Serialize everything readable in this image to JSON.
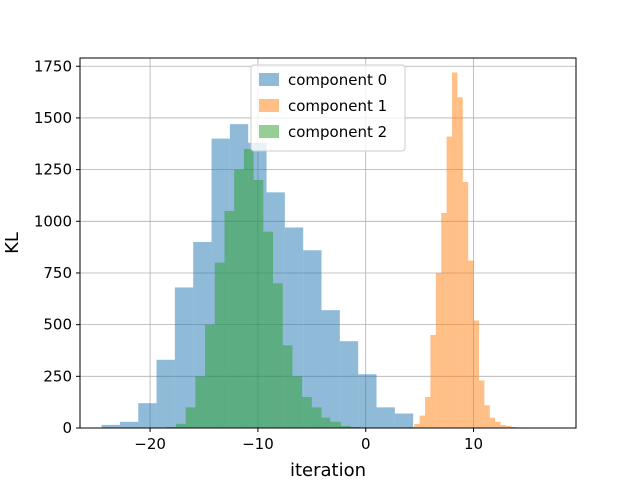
{
  "chart_data": {
    "type": "histogram",
    "xlabel": "iteration",
    "ylabel": "KL",
    "xlim": [
      -26.5,
      19.5
    ],
    "ylim": [
      0,
      1790
    ],
    "xticks": [
      -20,
      -10,
      0,
      10
    ],
    "yticks": [
      0,
      250,
      500,
      750,
      1000,
      1250,
      1500,
      1750
    ],
    "xtick_labels": [
      "−20",
      "−10",
      "0",
      "10"
    ],
    "ytick_labels": [
      "0",
      "250",
      "500",
      "750",
      "1000",
      "1250",
      "1500",
      "1750"
    ],
    "grid": true,
    "legend_position": "top-center",
    "series": [
      {
        "name": "component 0",
        "color": "#1f77b4",
        "alpha": 0.5,
        "bin_edges": [
          -24.5,
          -22.8,
          -21.1,
          -19.4,
          -17.7,
          -16.0,
          -14.3,
          -12.6,
          -10.9,
          -9.2,
          -7.5,
          -5.8,
          -4.1,
          -2.4,
          -0.7,
          1.0,
          2.7,
          4.4
        ],
        "counts": [
          15,
          30,
          120,
          330,
          680,
          900,
          1400,
          1470,
          1380,
          1140,
          970,
          860,
          570,
          420,
          260,
          100,
          70
        ]
      },
      {
        "name": "component 1",
        "color": "#ff7f0e",
        "alpha": 0.5,
        "bin_edges": [
          4.0,
          4.5,
          5.0,
          5.5,
          6.0,
          6.5,
          7.0,
          7.5,
          8.0,
          8.5,
          9.0,
          9.5,
          10.0,
          10.5,
          11.0,
          11.5,
          12.0,
          12.5,
          13.0,
          13.5,
          14.0,
          14.5,
          15.0,
          15.5,
          16.0,
          16.5,
          17.0,
          17.5,
          18.0
        ],
        "counts": [
          5,
          20,
          60,
          150,
          450,
          750,
          1040,
          1410,
          1720,
          1600,
          1190,
          810,
          520,
          230,
          110,
          50,
          30,
          15,
          10,
          5,
          3,
          2,
          1,
          1,
          0,
          0,
          1,
          1
        ]
      },
      {
        "name": "component 2",
        "color": "#2ca02c",
        "alpha": 0.5,
        "bin_edges": [
          -18.5,
          -17.6,
          -16.7,
          -15.8,
          -14.9,
          -14.0,
          -13.1,
          -12.2,
          -11.3,
          -10.4,
          -9.5,
          -8.6,
          -7.7,
          -6.8,
          -5.9,
          -5.0,
          -4.1,
          -3.3,
          -2.3,
          -1.4,
          -0.5
        ],
        "counts": [
          5,
          20,
          100,
          250,
          500,
          800,
          1050,
          1250,
          1350,
          1200,
          950,
          700,
          400,
          250,
          150,
          100,
          50,
          30,
          10,
          5
        ]
      }
    ]
  }
}
